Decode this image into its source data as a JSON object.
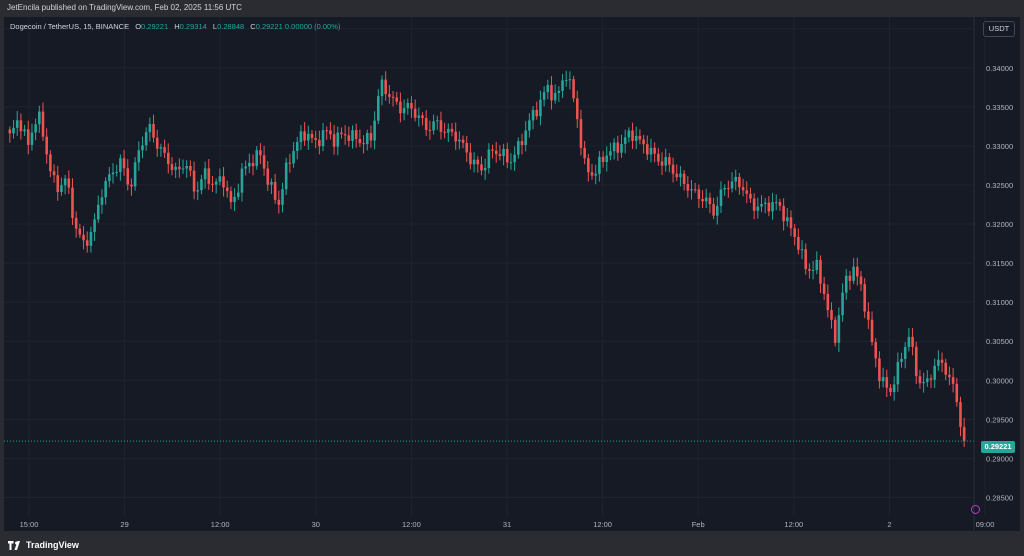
{
  "header": {
    "published": "JetEncila published on TradingView.com, Feb 02, 2025 11:56 UTC"
  },
  "legend": {
    "symbol": "Dogecoin / TetherUS, 15, BINANCE",
    "o_label": "O",
    "o_value": "0.29221",
    "h_label": "H",
    "h_value": "0.29314",
    "l_label": "L",
    "l_value": "0.28848",
    "c_label": "C",
    "c_value": "0.29221",
    "change": "0.00000 (0.00%)"
  },
  "currency_button": "USDT",
  "last_price_label": "0.29221",
  "footer": {
    "brand": "TradingView"
  },
  "colors": {
    "up": "#26a69a",
    "down": "#ef5350",
    "background": "#161a25",
    "grid": "#1f2330",
    "text": "#b2b5be"
  },
  "chart_data": {
    "type": "candlestick",
    "ylim": [
      0.2825,
      0.3465
    ],
    "y_ticks": [
      "0.34500",
      "0.34000",
      "0.33500",
      "0.33000",
      "0.32500",
      "0.32000",
      "0.31500",
      "0.31000",
      "0.30500",
      "0.30000",
      "0.29500",
      "0.29000",
      "0.28500"
    ],
    "x_ticks": [
      "15:00",
      "29",
      "12:00",
      "30",
      "12:00",
      "31",
      "12:00",
      "Feb",
      "12:00",
      "2",
      "09:00"
    ],
    "last_price": 0.29221,
    "closes": [
      0.3312,
      0.3335,
      0.33,
      0.3345,
      0.329,
      0.3242,
      0.326,
      0.32,
      0.3172,
      0.3195,
      0.3245,
      0.3265,
      0.328,
      0.3245,
      0.3298,
      0.3325,
      0.33,
      0.3282,
      0.3265,
      0.328,
      0.324,
      0.3265,
      0.325,
      0.3258,
      0.322,
      0.3265,
      0.328,
      0.329,
      0.325,
      0.3225,
      0.3278,
      0.3305,
      0.3318,
      0.3302,
      0.332,
      0.3308,
      0.3315,
      0.3312,
      0.3305,
      0.331,
      0.338,
      0.3365,
      0.3348,
      0.335,
      0.334,
      0.3322,
      0.333,
      0.3318,
      0.3315,
      0.3298,
      0.3278,
      0.327,
      0.3295,
      0.329,
      0.328,
      0.33,
      0.333,
      0.335,
      0.3375,
      0.336,
      0.3395,
      0.3355,
      0.3275,
      0.3262,
      0.3285,
      0.3295,
      0.3302,
      0.3318,
      0.3305,
      0.3295,
      0.3282,
      0.3278,
      0.3262,
      0.325,
      0.3238,
      0.3232,
      0.3215,
      0.3245,
      0.3255,
      0.325,
      0.3225,
      0.3222,
      0.3225,
      0.3225,
      0.32,
      0.3178,
      0.314,
      0.3148,
      0.3108,
      0.305,
      0.312,
      0.3145,
      0.3115,
      0.305,
      0.3,
      0.2985,
      0.302,
      0.306,
      0.3,
      0.2995,
      0.3025,
      0.3015,
      0.2985,
      0.2922
    ]
  }
}
